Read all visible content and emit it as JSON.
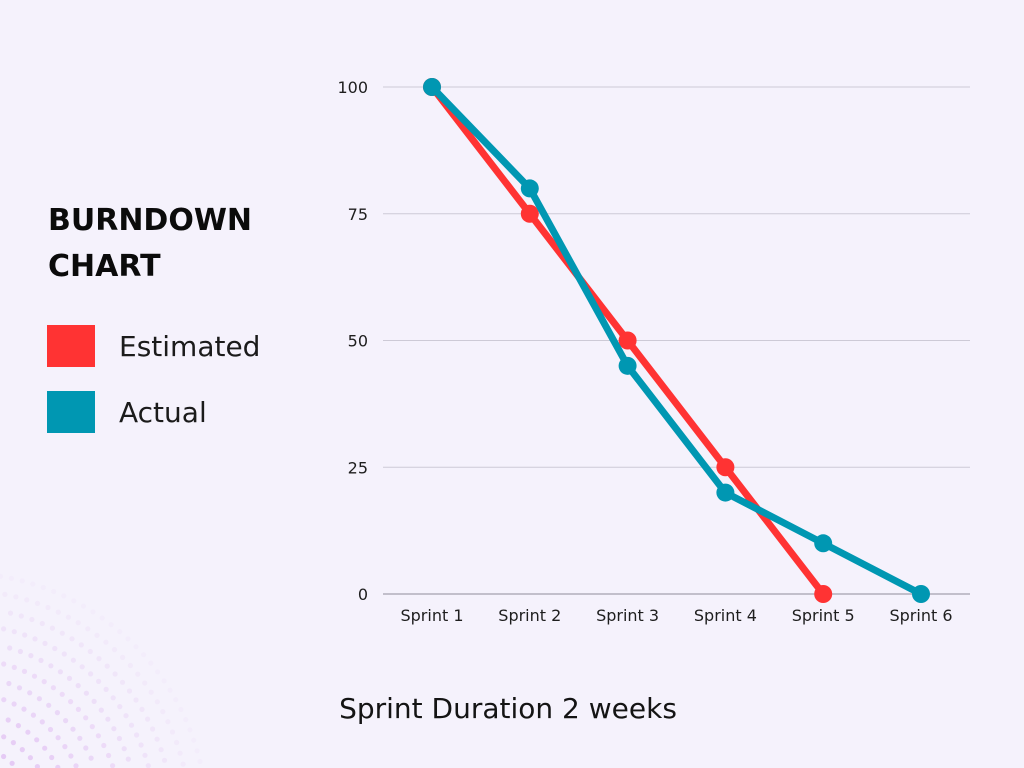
{
  "legend_title": "BURNDOWN CHART",
  "chart_data": {
    "type": "line",
    "title": "BURNDOWN CHART",
    "xlabel": "Sprint Duration 2 weeks",
    "ylabel": "",
    "categories": [
      "Sprint 1",
      "Sprint 2",
      "Sprint 3",
      "Sprint 4",
      "Sprint 5",
      "Sprint 6"
    ],
    "ylim": [
      0,
      100
    ],
    "yticks": [
      0,
      25,
      50,
      75,
      100
    ],
    "grid": true,
    "legend_position": "left",
    "series": [
      {
        "name": "Estimated",
        "color": "#ff3333",
        "values": [
          100,
          75,
          50,
          25,
          0,
          null
        ]
      },
      {
        "name": "Actual",
        "color": "#0097b2",
        "values": [
          100,
          80,
          45,
          20,
          10,
          0
        ]
      }
    ]
  }
}
